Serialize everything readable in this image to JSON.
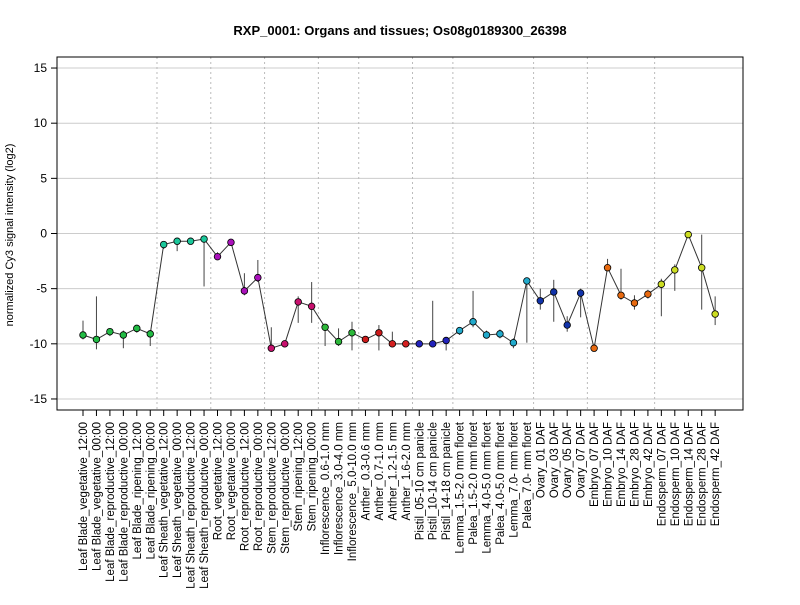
{
  "chart_data": {
    "type": "line",
    "title": "RXP_0001: Organs and tissues; Os08g0189300_26398",
    "xlabel": "",
    "ylabel": "normalized Cy3 signal intensity (log2)",
    "ylim": [
      -16,
      16
    ],
    "yticks": [
      -15,
      -10,
      -5,
      0,
      5,
      10,
      15
    ],
    "grid": true,
    "categories": [
      "Leaf Blade_vegetative_12:00",
      "Leaf Blade_vegetative_00:00",
      "Leaf Blade_reproductive_12:00",
      "Leaf Blade_reproductive_00:00",
      "Leaf Blade_ripening_12:00",
      "Leaf Blade_ripening_00:00",
      "Leaf Sheath_vegetative_12:00",
      "Leaf Sheath_vegetative_00:00",
      "Leaf Sheath_reproductive_12:00",
      "Leaf Sheath_reproductive_00:00",
      "Root_vegetative_12:00",
      "Root_vegetative_00:00",
      "Root_reproductive_12:00",
      "Root_reproductive_00:00",
      "Stem_reproductive_12:00",
      "Stem_reproductive_00:00",
      "Stem_ripening_12:00",
      "Stem_ripening_00:00",
      "Inflorescence_0.6-1.0 mm",
      "Inflorescence_3.0-4.0 mm",
      "Inflorescence_5.0-10.0 mm",
      "Anther_0.3-0.6 mm",
      "Anther_0.7-1.0 mm",
      "Anther_1.2-1.5 mm",
      "Anther_1.6-2.0 mm",
      "Pistil_05-10 cm panicle",
      "Pistil_10-14 cm panicle",
      "Pistil_14-18 cm panicle",
      "Lemma_1.5-2.0 mm floret",
      "Palea_1.5-2.0 mm floret",
      "Lemma_4.0-5.0 mm floret",
      "Palea_4.0-5.0 mm floret",
      "Lemma_7.0- mm floret",
      "Palea_7.0- mm floret",
      "Ovary_01 DAF",
      "Ovary_03 DAF",
      "Ovary_05 DAF",
      "Ovary_07 DAF",
      "Embryo_07 DAF",
      "Embryo_10 DAF",
      "Embryo_14 DAF",
      "Embryo_28 DAF",
      "Embryo_42 DAF",
      "Endosperm_07 DAF",
      "Endosperm_10 DAF",
      "Endosperm_14 DAF",
      "Endosperm_28 DAF",
      "Endosperm_42 DAF"
    ],
    "series": [
      {
        "values": [
          -9.2,
          -9.6,
          -8.9,
          -9.2,
          -8.6,
          -9.1,
          -1.0,
          -0.7,
          -0.7,
          -0.5,
          -2.1,
          -0.8,
          -5.2,
          -4.0,
          -10.4,
          -10.0,
          -6.2,
          -6.6,
          -8.5,
          -9.8,
          -9.0,
          -9.6,
          -9.0,
          -10.0,
          -10.0,
          -10.0,
          -10.0,
          -9.7,
          -8.8,
          -8.0,
          -9.2,
          -9.1,
          -9.9,
          -4.3,
          -6.1,
          -5.3,
          -8.3,
          -5.4,
          -10.4,
          -3.1,
          -5.6,
          -6.3,
          -5.5,
          -4.6,
          -3.3,
          -0.1,
          -3.1,
          -7.3
        ],
        "err_low": [
          -9.6,
          -10.5,
          -9.3,
          -10.4,
          -9.0,
          -10.2,
          -1.4,
          -1.6,
          -1.0,
          -4.8,
          -2.4,
          -1.0,
          -5.6,
          -4.4,
          -10.6,
          -10.2,
          -8.1,
          -8.1,
          -10.2,
          -10.2,
          -10.6,
          -9.8,
          -10.6,
          -10.3,
          -10.2,
          -10.3,
          -10.3,
          -10.6,
          -9.2,
          -8.5,
          -9.5,
          -9.5,
          -10.4,
          -9.9,
          -6.9,
          -8.0,
          -8.9,
          -7.6,
          -10.6,
          -3.4,
          -6.0,
          -6.9,
          -5.9,
          -7.5,
          -5.2,
          -0.4,
          -6.9,
          -8.3
        ],
        "err_high": [
          -7.9,
          -5.7,
          -8.7,
          -8.8,
          -8.3,
          -8.8,
          -0.7,
          -0.5,
          -0.4,
          -0.3,
          -1.7,
          -0.6,
          -3.6,
          -2.4,
          -8.5,
          -9.7,
          -5.7,
          -4.4,
          -8.3,
          -8.6,
          -8.0,
          -9.3,
          -8.3,
          -8.9,
          -9.7,
          -9.9,
          -6.1,
          -9.4,
          -8.5,
          -5.2,
          -8.8,
          -8.7,
          -9.5,
          -4.1,
          -5.0,
          -4.2,
          -7.5,
          -5.0,
          -10.1,
          -2.3,
          -3.2,
          -5.6,
          -5.1,
          -4.1,
          -2.8,
          0.2,
          -0.1,
          -5.7
        ],
        "colors": [
          "#22bb44",
          "#22bb44",
          "#22bb44",
          "#22bb44",
          "#22bb44",
          "#22bb44",
          "#1ac79a",
          "#1ac79a",
          "#1ac79a",
          "#1ac79a",
          "#aa11bb",
          "#aa11bb",
          "#aa11bb",
          "#aa11bb",
          "#c8106e",
          "#c8106e",
          "#c8106e",
          "#c8106e",
          "#2cb83a",
          "#2cb83a",
          "#2cb83a",
          "#cc1a1a",
          "#cc1a1a",
          "#d42020",
          "#d42020",
          "#2222bb",
          "#2222bb",
          "#2222bb",
          "#22aacc",
          "#22aacc",
          "#22aacc",
          "#22aacc",
          "#22aacc",
          "#22aacc",
          "#1133aa",
          "#1133aa",
          "#1133aa",
          "#1133aa",
          "#e86a10",
          "#e86a10",
          "#e86a10",
          "#e86a10",
          "#e86a10",
          "#ccdd22",
          "#ccdd22",
          "#ccdd22",
          "#ccdd22",
          "#ccdd22"
        ]
      }
    ],
    "group_separators_after": [
      5,
      9,
      13,
      17,
      20,
      24,
      27,
      33,
      37,
      42
    ]
  }
}
